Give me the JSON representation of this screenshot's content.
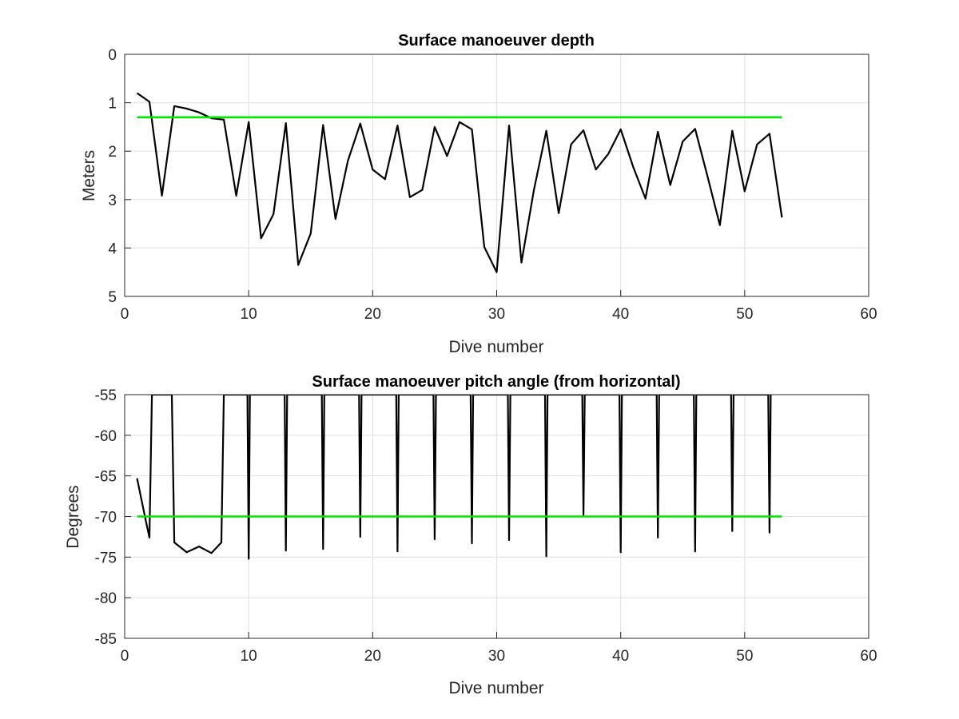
{
  "chart_data": [
    {
      "type": "line",
      "title": "Surface manoeuver depth",
      "xlabel": "Dive number",
      "ylabel": "Meters",
      "xlim": [
        0,
        60
      ],
      "ylim": [
        0,
        5
      ],
      "y_reversed": true,
      "x_ticks": [
        "0",
        "10",
        "20",
        "30",
        "40",
        "50",
        "60"
      ],
      "y_ticks": [
        "0",
        "1",
        "2",
        "3",
        "4",
        "5"
      ],
      "grid": true,
      "series": [
        {
          "color": "#000000",
          "x": [
            1,
            2,
            3,
            4,
            5,
            6,
            7,
            8,
            9,
            10,
            11,
            12,
            13,
            14,
            15,
            16,
            17,
            18,
            19,
            20,
            21,
            22,
            23,
            24,
            25,
            26,
            27,
            28,
            29,
            30,
            31,
            32,
            33,
            34,
            35,
            36,
            37,
            38,
            39,
            40,
            41,
            42,
            43,
            44,
            45,
            46,
            47,
            48,
            49,
            50,
            51,
            52,
            53
          ],
          "values": [
            0.8,
            0.98,
            2.92,
            1.07,
            1.12,
            1.2,
            1.32,
            1.35,
            2.92,
            1.4,
            3.8,
            3.3,
            1.42,
            4.35,
            3.7,
            1.46,
            3.4,
            2.2,
            1.43,
            2.38,
            2.58,
            1.47,
            2.95,
            2.8,
            1.5,
            2.1,
            1.4,
            1.55,
            3.98,
            4.5,
            1.47,
            4.3,
            2.8,
            1.58,
            3.28,
            1.86,
            1.57,
            2.38,
            2.06,
            1.55,
            2.32,
            2.98,
            1.6,
            2.7,
            1.8,
            1.54,
            2.52,
            3.53,
            1.58,
            2.83,
            1.86,
            1.64,
            3.37
          ]
        },
        {
          "color": "#00e600",
          "x": [
            1,
            53
          ],
          "values": [
            1.3,
            1.3
          ]
        }
      ]
    },
    {
      "type": "line",
      "title": "Surface manoeuver pitch angle (from horizontal)",
      "xlabel": "Dive number",
      "ylabel": "Degrees",
      "xlim": [
        0,
        60
      ],
      "ylim": [
        -85,
        -55
      ],
      "x_ticks": [
        "0",
        "10",
        "20",
        "30",
        "40",
        "50",
        "60"
      ],
      "y_ticks": [
        "-55",
        "-60",
        "-65",
        "-70",
        "-75",
        "-80",
        "-85"
      ],
      "grid": true,
      "series": [
        {
          "color": "#000000",
          "x": [
            1,
            1.7,
            2,
            2.2,
            3.8,
            4,
            5,
            6,
            7,
            7.8,
            8,
            8.1,
            9.9,
            10,
            10.1,
            12.9,
            13,
            13.1,
            15.9,
            16,
            16.1,
            18.9,
            19,
            19.1,
            21.9,
            22,
            22.1,
            24.9,
            25,
            25.1,
            27.9,
            28,
            28.1,
            30.9,
            31,
            31.1,
            33.9,
            34,
            34.1,
            36.9,
            37,
            37.1,
            39.9,
            40,
            40.1,
            42.9,
            43,
            43.1,
            45.9,
            46,
            46.1,
            48.9,
            49,
            49.1,
            51.9,
            52,
            52.1
          ],
          "values": [
            -65.3,
            -70.5,
            -72.6,
            -55,
            -55,
            -73.2,
            -74.4,
            -73.7,
            -74.5,
            -73.2,
            -55,
            -55,
            -55,
            -75.2,
            -55,
            -55,
            -74.2,
            -55,
            -55,
            -74.0,
            -55,
            -55,
            -72.5,
            -55,
            -55,
            -74.3,
            -55,
            -55,
            -72.8,
            -55,
            -55,
            -73.3,
            -55,
            -55,
            -72.9,
            -55,
            -55,
            -74.9,
            -55,
            -55,
            -69.8,
            -55,
            -55,
            -74.4,
            -55,
            -55,
            -72.6,
            -55,
            -55,
            -74.3,
            -55,
            -55,
            -71.8,
            -55,
            -55,
            -72.0,
            -55
          ]
        },
        {
          "color": "#00e600",
          "x": [
            1,
            53
          ],
          "values": [
            -70,
            -70
          ]
        }
      ]
    }
  ]
}
